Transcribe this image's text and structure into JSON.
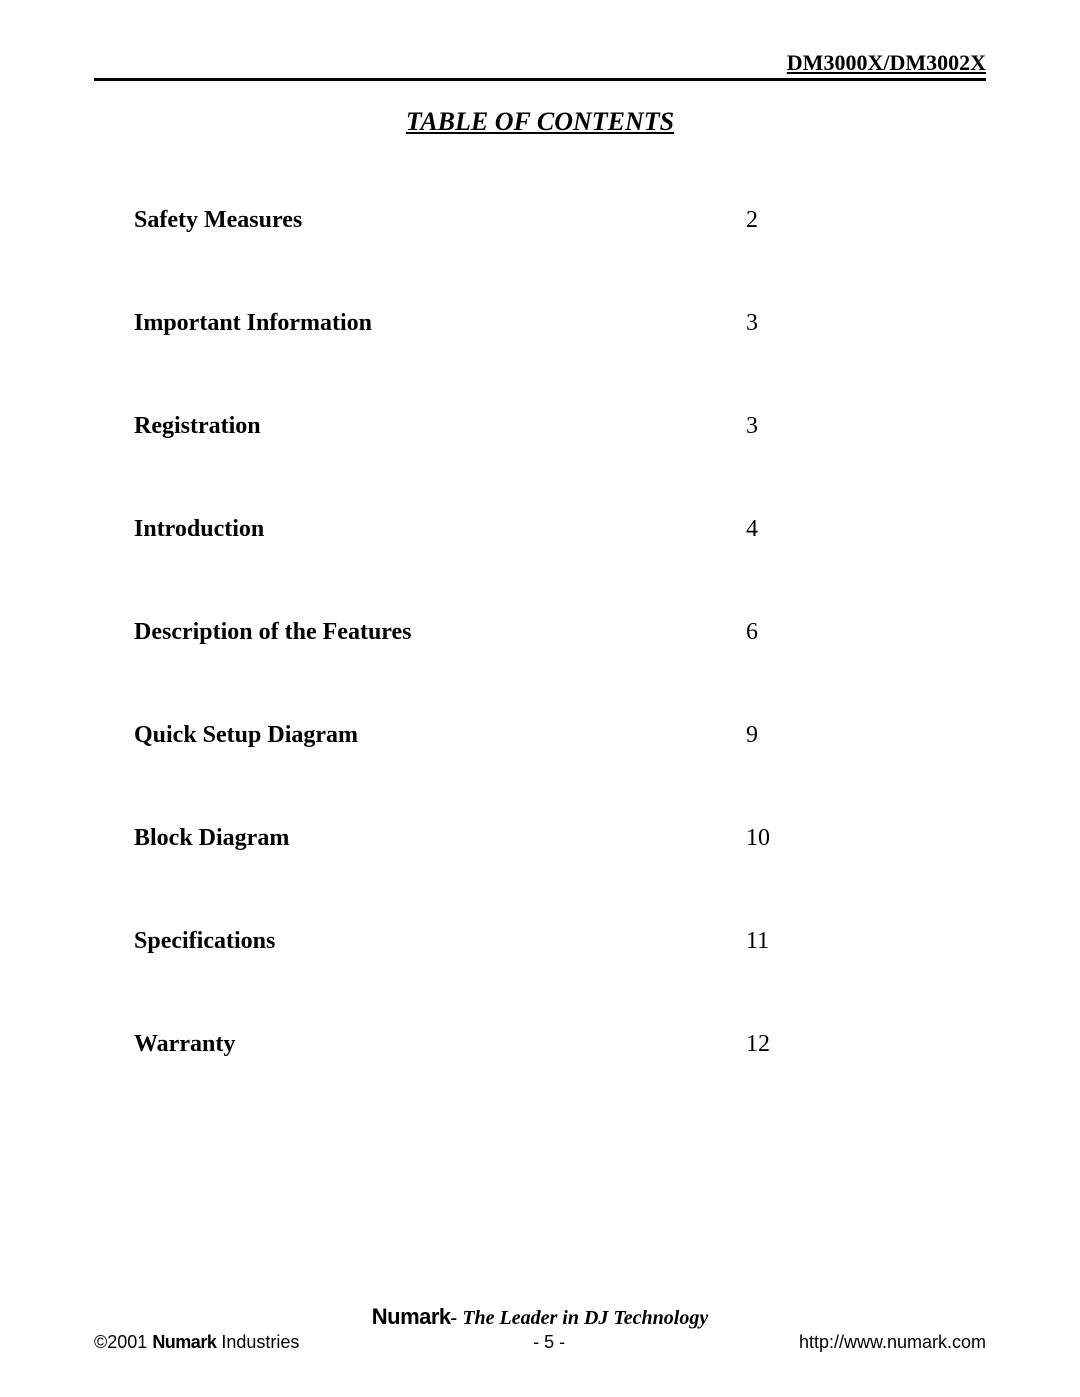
{
  "header": {
    "model": "DM3000X/DM3002X"
  },
  "title": "TABLE OF CONTENTS",
  "toc": [
    {
      "label": "Safety Measures",
      "page": "2"
    },
    {
      "label": "Important Information",
      "page": "3"
    },
    {
      "label": "Registration",
      "page": "3"
    },
    {
      "label": "Introduction",
      "page": "4"
    },
    {
      "label": "Description of the Features",
      "page": "6"
    },
    {
      "label": "Quick Setup Diagram",
      "page": "9"
    },
    {
      "label": "Block Diagram",
      "page": "10"
    },
    {
      "label": "Specifications",
      "page": "11"
    },
    {
      "label": "Warranty",
      "page": "12"
    }
  ],
  "footer": {
    "brand": "Numark",
    "tagline_rest": "- The Leader in DJ Technology",
    "copyright_prefix": "©2001 ",
    "copyright_suffix": " Industries",
    "page_number": "- 5 -",
    "url": "http://www.numark.com"
  }
}
